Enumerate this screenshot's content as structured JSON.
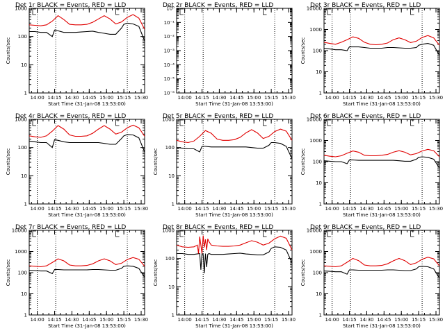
{
  "chart_data": [
    {
      "type": "line",
      "title": "Det 1r BLACK = Events, RED = LLD",
      "xlabel": "Start Time (31-Jan-08 13:53:00)",
      "ylabel": "Counts/sec",
      "yscale": "log",
      "ylim": [
        1,
        1000
      ],
      "y_tick_labels": [
        "1",
        "10",
        "100",
        "1000"
      ],
      "x_tick_labels": [
        "14:00",
        "14:15",
        "14:30",
        "14:45",
        "15:00",
        "15:15",
        "15:30"
      ],
      "series": [
        {
          "name": "Events",
          "color": "#000000",
          "x": [
            0,
            5,
            10,
            15,
            20,
            22,
            25,
            30,
            35,
            40,
            45,
            50,
            55,
            60,
            65,
            70,
            75,
            80,
            82,
            85,
            90,
            95,
            100
          ],
          "y": [
            150,
            150,
            140,
            140,
            100,
            170,
            160,
            140,
            140,
            140,
            145,
            150,
            155,
            140,
            130,
            120,
            120,
            200,
            270,
            300,
            280,
            230,
            70
          ]
        },
        {
          "name": "LLD",
          "color": "#e00000",
          "x": [
            0,
            5,
            10,
            15,
            20,
            25,
            30,
            35,
            40,
            45,
            50,
            55,
            60,
            65,
            70,
            75,
            80,
            85,
            90,
            95,
            100
          ],
          "y": [
            260,
            250,
            240,
            260,
            350,
            550,
            400,
            270,
            260,
            260,
            270,
            320,
            420,
            550,
            420,
            280,
            330,
            480,
            600,
            450,
            180
          ]
        }
      ],
      "vlines": [
        7,
        23,
        85
      ]
    },
    {
      "type": "line",
      "title": "Det 2r BLACK = Events, RED = LLD",
      "xlabel": "Start Time (31-Jan-08 13:53:00)",
      "ylabel": "",
      "yscale": "log",
      "ylim": [
        1e-06,
        1
      ],
      "y_tick_labels": [
        "10⁻⁶",
        "10⁻⁵",
        "10⁻⁴",
        "10⁻³",
        "10⁻²",
        "10⁻¹",
        "10⁰"
      ],
      "x_tick_labels": [
        "14:00",
        "14:15",
        "14:30",
        "14:45",
        "15:00",
        "15:15",
        "15:30"
      ],
      "series": [],
      "vlines": [
        7,
        23,
        85
      ]
    },
    {
      "type": "line",
      "title": "Det 3r BLACK = Events, RED = LLD",
      "xlabel": "Start Time (31-Jan-08 13:53:00)",
      "ylabel": "Counts/sec",
      "yscale": "log",
      "ylim": [
        1,
        10000
      ],
      "y_tick_labels": [
        "1",
        "10",
        "100",
        "1000",
        "10000"
      ],
      "x_tick_labels": [
        "14:00",
        "14:15",
        "14:30",
        "14:45",
        "15:00",
        "15:15",
        "15:30"
      ],
      "series": [
        {
          "name": "Events",
          "color": "#000000",
          "x": [
            0,
            5,
            10,
            15,
            20,
            22,
            25,
            30,
            35,
            40,
            45,
            50,
            55,
            60,
            65,
            70,
            75,
            80,
            82,
            85,
            90,
            95,
            100
          ],
          "y": [
            130,
            120,
            110,
            110,
            100,
            150,
            150,
            150,
            140,
            130,
            130,
            130,
            140,
            140,
            135,
            130,
            130,
            140,
            180,
            200,
            220,
            180,
            60
          ]
        },
        {
          "name": "LLD",
          "color": "#e00000",
          "x": [
            0,
            5,
            10,
            15,
            20,
            25,
            30,
            35,
            40,
            45,
            50,
            55,
            60,
            65,
            70,
            75,
            80,
            85,
            90,
            95,
            100
          ],
          "y": [
            250,
            220,
            200,
            250,
            330,
            450,
            380,
            250,
            200,
            190,
            200,
            230,
            330,
            400,
            330,
            240,
            280,
            420,
            520,
            400,
            180
          ]
        }
      ],
      "vlines": [
        7,
        23,
        85
      ]
    },
    {
      "type": "line",
      "title": "Det 4r BLACK = Events, RED = LLD",
      "xlabel": "Start Time (31-Jan-08 13:53:00)",
      "ylabel": "Counts/sec",
      "yscale": "log",
      "ylim": [
        1,
        1000
      ],
      "y_tick_labels": [
        "1",
        "10",
        "100",
        "1000"
      ],
      "x_tick_labels": [
        "14:00",
        "14:15",
        "14:30",
        "14:45",
        "15:00",
        "15:15",
        "15:30"
      ],
      "series": [
        {
          "name": "Events",
          "color": "#000000",
          "x": [
            0,
            5,
            10,
            15,
            20,
            22,
            25,
            30,
            35,
            40,
            45,
            50,
            55,
            60,
            65,
            70,
            75,
            80,
            82,
            85,
            90,
            95,
            100
          ],
          "y": [
            170,
            160,
            150,
            150,
            100,
            190,
            180,
            160,
            150,
            150,
            150,
            150,
            150,
            150,
            140,
            130,
            130,
            210,
            260,
            290,
            280,
            220,
            70
          ]
        },
        {
          "name": "LLD",
          "color": "#e00000",
          "x": [
            0,
            5,
            10,
            15,
            20,
            25,
            30,
            35,
            40,
            45,
            50,
            55,
            60,
            65,
            70,
            75,
            80,
            85,
            90,
            95,
            100
          ],
          "y": [
            260,
            240,
            230,
            260,
            380,
            600,
            450,
            280,
            250,
            250,
            260,
            320,
            450,
            600,
            450,
            300,
            350,
            500,
            620,
            500,
            250
          ]
        }
      ],
      "vlines": [
        7,
        23,
        85
      ]
    },
    {
      "type": "line",
      "title": "Det 5r BLACK = Events, RED = LLD",
      "xlabel": "Start Time (31-Jan-08 13:53:00)",
      "ylabel": "Counts/sec",
      "yscale": "log",
      "ylim": [
        1,
        1000
      ],
      "y_tick_labels": [
        "1",
        "10",
        "100",
        "1000"
      ],
      "x_tick_labels": [
        "14:00",
        "14:15",
        "14:30",
        "14:45",
        "15:00",
        "15:15",
        "15:30"
      ],
      "series": [
        {
          "name": "Events",
          "color": "#000000",
          "x": [
            0,
            5,
            10,
            15,
            20,
            22,
            25,
            30,
            35,
            40,
            45,
            50,
            55,
            60,
            65,
            70,
            75,
            80,
            82,
            85,
            90,
            95,
            100
          ],
          "y": [
            100,
            95,
            90,
            90,
            70,
            110,
            110,
            105,
            105,
            105,
            105,
            105,
            105,
            105,
            100,
            95,
            95,
            120,
            150,
            150,
            140,
            110,
            40
          ]
        },
        {
          "name": "LLD",
          "color": "#e00000",
          "x": [
            0,
            5,
            10,
            15,
            20,
            25,
            30,
            35,
            40,
            45,
            50,
            55,
            60,
            65,
            70,
            75,
            80,
            85,
            90,
            95,
            100
          ],
          "y": [
            180,
            160,
            150,
            170,
            250,
            400,
            320,
            200,
            180,
            180,
            190,
            230,
            330,
            430,
            330,
            210,
            250,
            370,
            450,
            380,
            180
          ]
        }
      ],
      "vlines": [
        7,
        23,
        85
      ]
    },
    {
      "type": "line",
      "title": "Det 6r BLACK = Events, RED = LLD",
      "xlabel": "Start Time (31-Jan-08 13:53:00)",
      "ylabel": "Counts/sec",
      "yscale": "log",
      "ylim": [
        1,
        10000
      ],
      "y_tick_labels": [
        "1",
        "10",
        "100",
        "1000",
        "10000"
      ],
      "x_tick_labels": [
        "14:00",
        "14:15",
        "14:30",
        "14:45",
        "15:00",
        "15:15",
        "15:30"
      ],
      "series": [
        {
          "name": "Events",
          "color": "#000000",
          "x": [
            0,
            5,
            10,
            15,
            20,
            22,
            25,
            30,
            35,
            40,
            45,
            50,
            55,
            60,
            65,
            70,
            75,
            80,
            82,
            85,
            90,
            95,
            100
          ],
          "y": [
            110,
            105,
            100,
            100,
            80,
            120,
            120,
            115,
            115,
            115,
            115,
            115,
            115,
            115,
            110,
            105,
            105,
            130,
            160,
            170,
            160,
            130,
            50
          ]
        },
        {
          "name": "LLD",
          "color": "#e00000",
          "x": [
            0,
            5,
            10,
            15,
            20,
            25,
            30,
            35,
            40,
            45,
            50,
            55,
            60,
            65,
            70,
            75,
            80,
            85,
            90,
            95,
            100
          ],
          "y": [
            200,
            180,
            170,
            190,
            250,
            320,
            280,
            200,
            190,
            190,
            200,
            220,
            280,
            330,
            280,
            210,
            240,
            320,
            380,
            330,
            170
          ]
        }
      ],
      "vlines": [
        7,
        23,
        85
      ]
    },
    {
      "type": "line",
      "title": "Det 7r BLACK = Events, RED = LLD",
      "xlabel": "Start Time (31-Jan-08 13:53:00)",
      "ylabel": "Counts/sec",
      "yscale": "log",
      "ylim": [
        1,
        10000
      ],
      "y_tick_labels": [
        "1",
        "10",
        "100",
        "1000",
        "10000"
      ],
      "x_tick_labels": [
        "14:00",
        "14:15",
        "14:30",
        "14:45",
        "15:00",
        "15:15",
        "15:30"
      ],
      "series": [
        {
          "name": "Events",
          "color": "#000000",
          "x": [
            0,
            5,
            10,
            15,
            20,
            22,
            25,
            30,
            35,
            40,
            45,
            50,
            55,
            60,
            65,
            70,
            75,
            80,
            82,
            85,
            90,
            95,
            100
          ],
          "y": [
            130,
            125,
            120,
            120,
            90,
            140,
            140,
            135,
            135,
            135,
            135,
            135,
            140,
            140,
            135,
            130,
            130,
            160,
            200,
            210,
            200,
            160,
            60
          ]
        },
        {
          "name": "LLD",
          "color": "#e00000",
          "x": [
            0,
            5,
            10,
            15,
            20,
            25,
            30,
            35,
            40,
            45,
            50,
            55,
            60,
            65,
            70,
            75,
            80,
            85,
            90,
            95,
            100
          ],
          "y": [
            210,
            200,
            190,
            210,
            300,
            450,
            360,
            230,
            210,
            210,
            220,
            260,
            360,
            450,
            360,
            240,
            280,
            420,
            520,
            430,
            200
          ]
        }
      ],
      "vlines": [
        7,
        23,
        85
      ]
    },
    {
      "type": "line",
      "title": "Det 8r BLACK = Events, RED = LLD",
      "xlabel": "Start Time (31-Jan-08 13:53:00)",
      "ylabel": "Counts/sec",
      "yscale": "log",
      "ylim": [
        1,
        1000
      ],
      "y_tick_labels": [
        "1",
        "10",
        "100",
        "1000"
      ],
      "x_tick_labels": [
        "14:00",
        "14:15",
        "14:30",
        "14:45",
        "15:00",
        "15:15",
        "15:30"
      ],
      "series": [
        {
          "name": "Events",
          "color": "#000000",
          "x": [
            0,
            5,
            10,
            15,
            20,
            21,
            22,
            23,
            24,
            25,
            26,
            27,
            28,
            30,
            35,
            40,
            45,
            50,
            55,
            60,
            65,
            70,
            75,
            80,
            82,
            85,
            90,
            95,
            100
          ],
          "y": [
            150,
            150,
            140,
            140,
            150,
            40,
            150,
            140,
            30,
            150,
            50,
            140,
            150,
            140,
            140,
            140,
            145,
            150,
            155,
            145,
            140,
            135,
            135,
            170,
            230,
            260,
            250,
            200,
            70
          ]
        },
        {
          "name": "LLD",
          "color": "#e00000",
          "x": [
            0,
            5,
            10,
            15,
            18,
            19,
            20,
            21,
            22,
            23,
            24,
            25,
            26,
            27,
            28,
            30,
            35,
            40,
            45,
            50,
            55,
            60,
            65,
            70,
            75,
            80,
            85,
            90,
            95,
            100
          ],
          "y": [
            300,
            260,
            250,
            260,
            300,
            150,
            600,
            300,
            150,
            650,
            250,
            480,
            200,
            500,
            400,
            300,
            280,
            270,
            270,
            280,
            300,
            360,
            430,
            380,
            300,
            350,
            500,
            620,
            520,
            200
          ]
        }
      ],
      "vlines": [
        7,
        23,
        85
      ]
    },
    {
      "type": "line",
      "title": "Det 9r BLACK = Events, RED = LLD",
      "xlabel": "Start Time (31-Jan-08 13:53:00)",
      "ylabel": "Counts/sec",
      "yscale": "log",
      "ylim": [
        1,
        10000
      ],
      "y_tick_labels": [
        "1",
        "10",
        "100",
        "1000",
        "10000"
      ],
      "x_tick_labels": [
        "14:00",
        "14:15",
        "14:30",
        "14:45",
        "15:00",
        "15:15",
        "15:30"
      ],
      "series": [
        {
          "name": "Events",
          "color": "#000000",
          "x": [
            0,
            5,
            10,
            15,
            20,
            22,
            25,
            30,
            35,
            40,
            45,
            50,
            55,
            60,
            65,
            70,
            75,
            80,
            82,
            85,
            90,
            95,
            100
          ],
          "y": [
            120,
            115,
            110,
            110,
            85,
            135,
            135,
            130,
            130,
            130,
            130,
            130,
            135,
            135,
            130,
            125,
            125,
            150,
            190,
            200,
            190,
            150,
            55
          ]
        },
        {
          "name": "LLD",
          "color": "#e00000",
          "x": [
            0,
            5,
            10,
            15,
            20,
            25,
            30,
            35,
            40,
            45,
            50,
            55,
            60,
            65,
            70,
            75,
            80,
            85,
            90,
            95,
            100
          ],
          "y": [
            210,
            200,
            190,
            210,
            310,
            470,
            370,
            230,
            210,
            210,
            220,
            260,
            360,
            470,
            370,
            240,
            290,
            430,
            540,
            450,
            210
          ]
        }
      ],
      "vlines": [
        7,
        23,
        85
      ]
    }
  ]
}
